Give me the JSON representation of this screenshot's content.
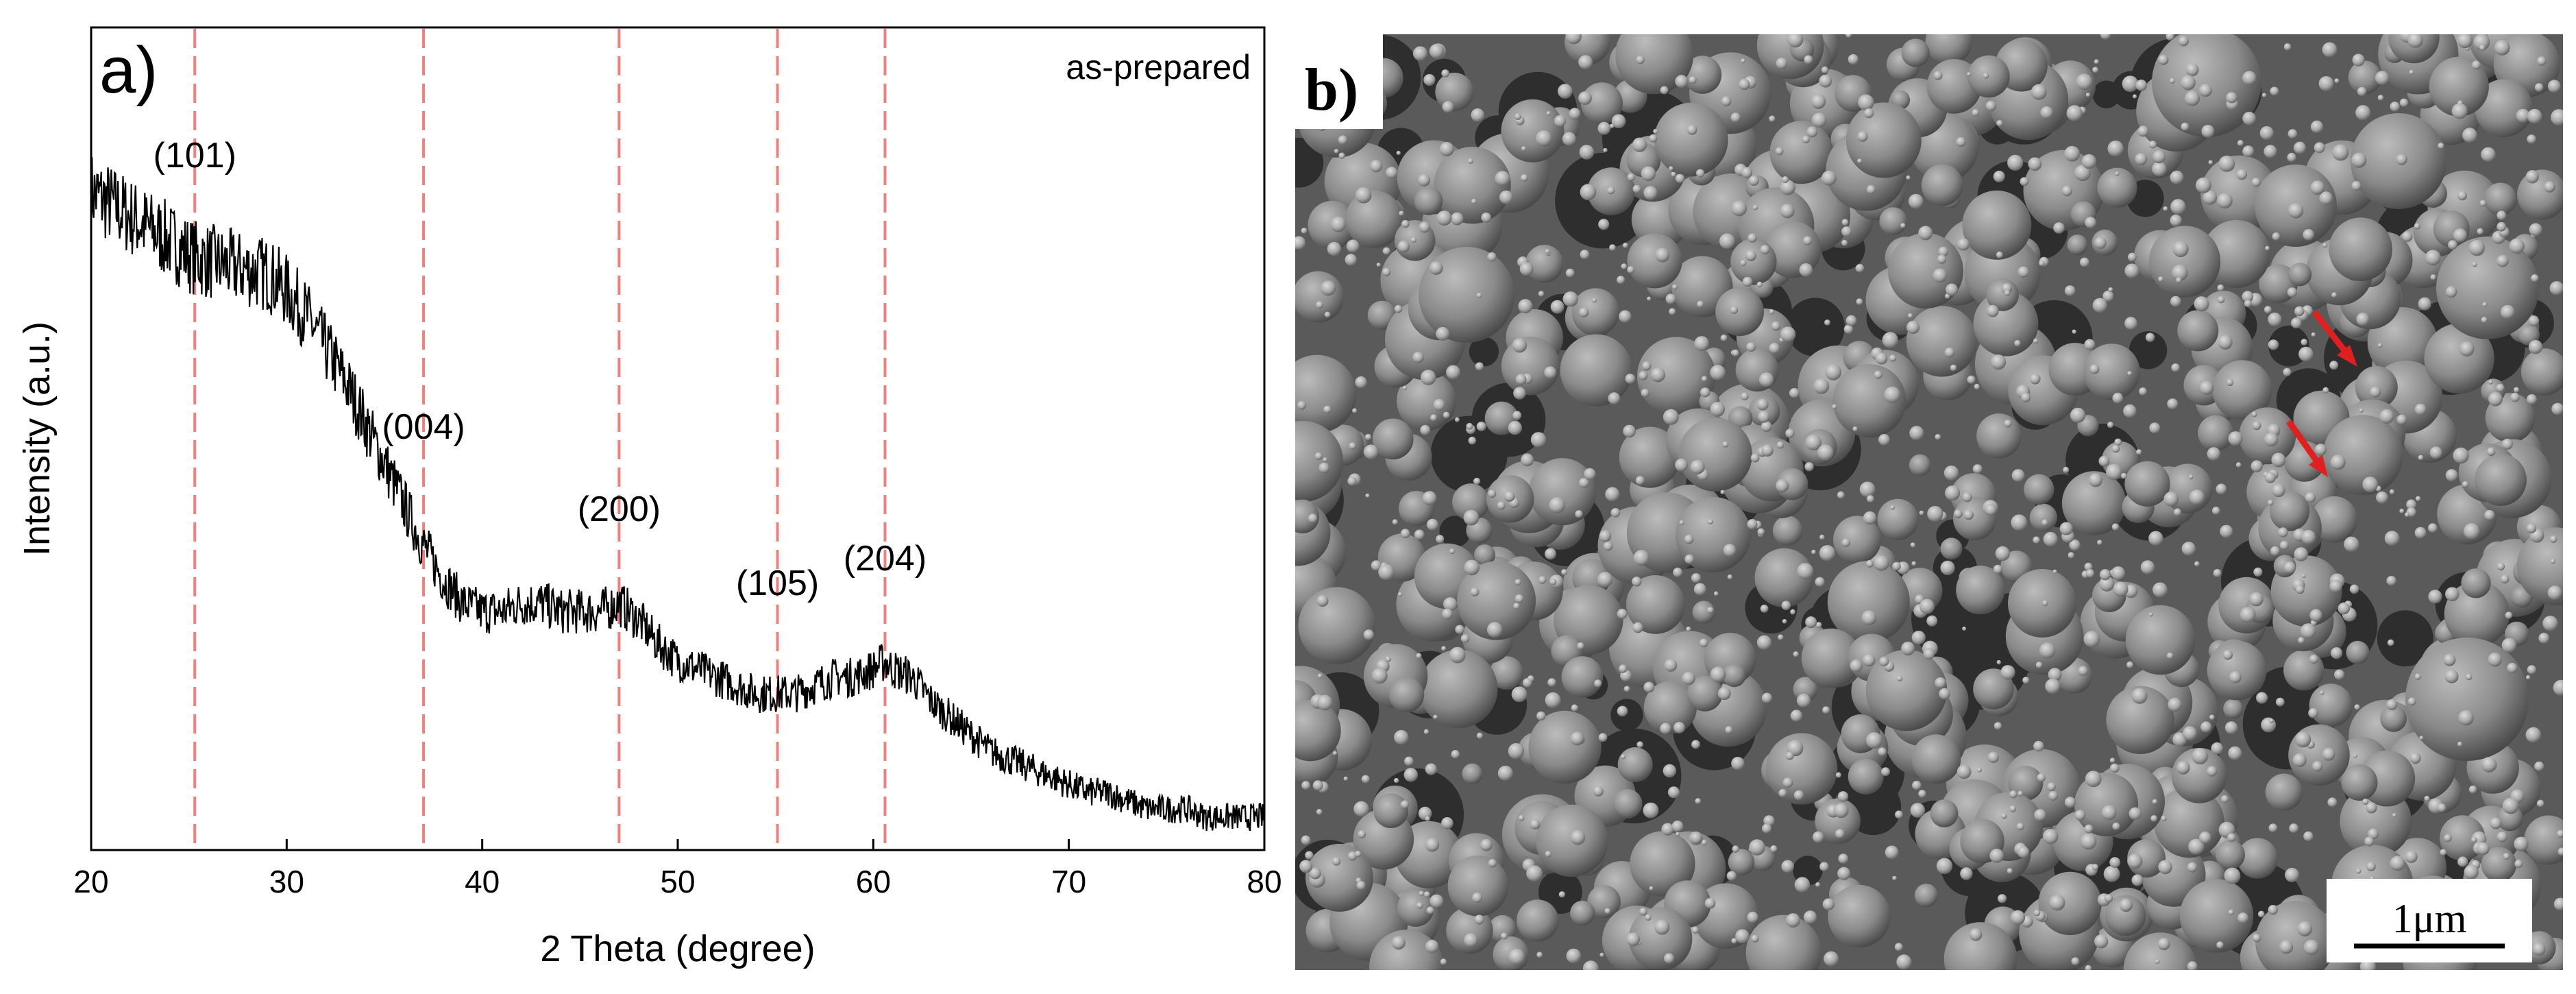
{
  "chart_data": {
    "type": "line",
    "panel_label": "a)",
    "annotation": "as-prepared",
    "xlabel": "2 Theta (degree)",
    "ylabel": "Intensity (a.u.)",
    "xlim": [
      20,
      80
    ],
    "x_ticks": [
      "20",
      "30",
      "40",
      "50",
      "60",
      "70",
      "80"
    ],
    "grid": false,
    "series": [
      {
        "x": [
          20,
          22,
          24,
          25.3,
          27,
          29,
          30,
          31,
          32,
          33,
          34,
          35,
          36,
          37,
          38,
          39,
          40,
          41,
          42,
          43,
          44,
          45,
          46,
          47,
          48,
          49,
          50,
          51,
          52,
          53,
          54,
          55,
          56,
          57,
          58,
          59,
          60,
          60.6,
          61,
          62,
          63,
          64,
          65,
          66,
          67,
          68,
          69,
          70,
          71,
          72,
          73,
          74,
          75,
          76,
          77,
          78,
          79,
          80
        ],
        "y": [
          0.8,
          0.77,
          0.74,
          0.72,
          0.71,
          0.7,
          0.68,
          0.65,
          0.61,
          0.57,
          0.52,
          0.47,
          0.42,
          0.37,
          0.33,
          0.3,
          0.29,
          0.29,
          0.3,
          0.3,
          0.29,
          0.29,
          0.29,
          0.3,
          0.28,
          0.25,
          0.23,
          0.22,
          0.21,
          0.2,
          0.19,
          0.19,
          0.19,
          0.2,
          0.21,
          0.21,
          0.22,
          0.23,
          0.22,
          0.21,
          0.18,
          0.16,
          0.14,
          0.12,
          0.11,
          0.1,
          0.09,
          0.08,
          0.07,
          0.07,
          0.06,
          0.05,
          0.05,
          0.05,
          0.04,
          0.04,
          0.04,
          0.04
        ]
      }
    ],
    "reference_lines": {
      "color": "#f08080",
      "x": [
        25.3,
        37.0,
        47.0,
        55.1,
        60.6
      ]
    },
    "peak_labels": [
      {
        "text": "(101)",
        "x": 25.3,
        "y": 0.83
      },
      {
        "text": "(004)",
        "x": 37.0,
        "y": 0.5
      },
      {
        "text": "(200)",
        "x": 47.0,
        "y": 0.4
      },
      {
        "text": "(105)",
        "x": 55.1,
        "y": 0.31
      },
      {
        "text": "(204)",
        "x": 60.6,
        "y": 0.34
      }
    ]
  },
  "sem_panel": {
    "panel_label": "b)",
    "scale_bar_label": "1μm",
    "arrow_color": "#e02020"
  }
}
